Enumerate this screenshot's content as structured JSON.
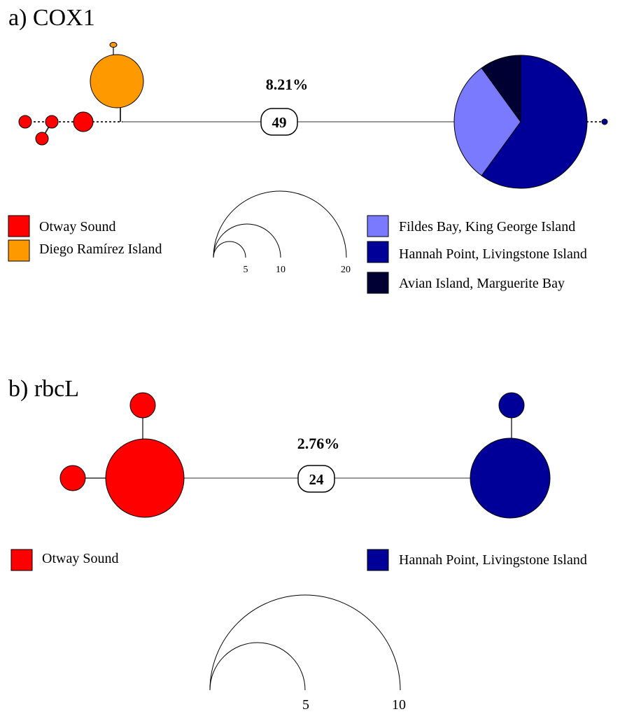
{
  "colors": {
    "otway": "#ff0000",
    "diego": "#ff9900",
    "fildes": "#7a7aff",
    "hannah": "#000099",
    "avian": "#000033",
    "edge": "#999999",
    "outline": "#000000"
  },
  "panel_a": {
    "title": "a) COX1",
    "divergence": "8.21%",
    "mutations": "49",
    "legend_left": [
      {
        "label": "Otway Sound",
        "color": "#ff0000"
      },
      {
        "label": "Diego Ramírez Island",
        "color": "#ff9900"
      }
    ],
    "legend_right": [
      {
        "label": "Fildes Bay, King George Island",
        "color": "#7a7aff"
      },
      {
        "label": "Hannah Point, Livingstone Island",
        "color": "#000099"
      },
      {
        "label": "Avian Island, Marguerite Bay",
        "color": "#000033"
      }
    ],
    "scale": [
      "5",
      "10",
      "20"
    ],
    "pie": [
      {
        "location": "Hannah Point, Livingstone Island",
        "fraction": 0.6
      },
      {
        "location": "Fildes Bay, King George Island",
        "fraction": 0.3
      },
      {
        "location": "Avian Island, Marguerite Bay",
        "fraction": 0.1
      }
    ]
  },
  "panel_b": {
    "title": "b) rbcL",
    "divergence": "2.76%",
    "mutations": "24",
    "legend_left": [
      {
        "label": "Otway Sound",
        "color": "#ff0000"
      }
    ],
    "legend_right": [
      {
        "label": "Hannah Point, Livingstone Island",
        "color": "#000099"
      }
    ],
    "scale": [
      "5",
      "10"
    ]
  }
}
